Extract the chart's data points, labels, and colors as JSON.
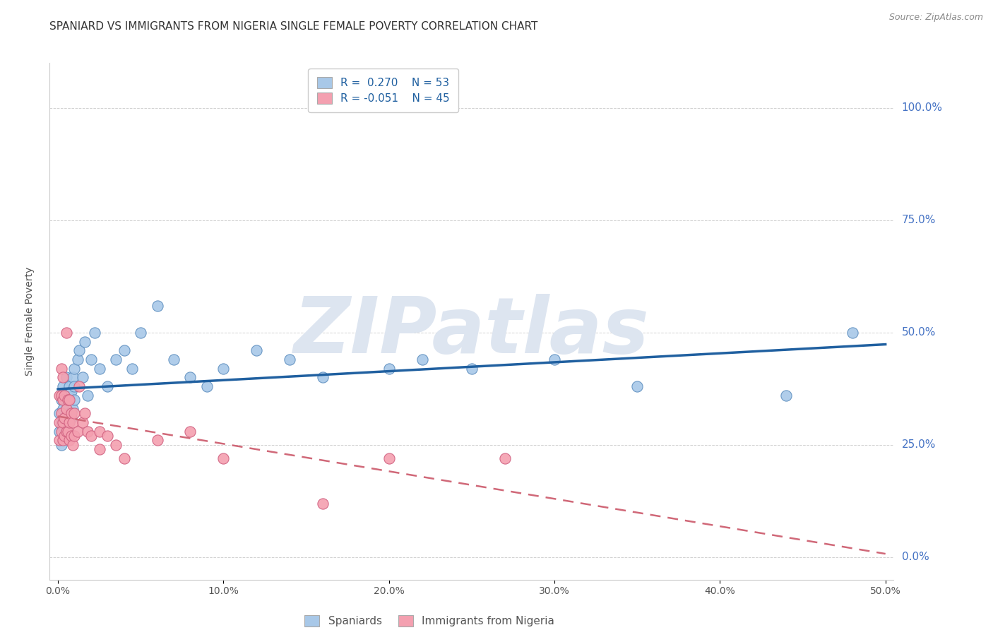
{
  "title": "SPANIARD VS IMMIGRANTS FROM NIGERIA SINGLE FEMALE POVERTY CORRELATION CHART",
  "source": "Source: ZipAtlas.com",
  "ylabel": "Single Female Poverty",
  "xlim": [
    -0.005,
    0.505
  ],
  "ylim": [
    -0.05,
    1.1
  ],
  "xticks": [
    0.0,
    0.1,
    0.2,
    0.3,
    0.4,
    0.5
  ],
  "xticklabels": [
    "0.0%",
    "10.0%",
    "20.0%",
    "30.0%",
    "40.0%",
    "50.0%"
  ],
  "yticks": [
    0.0,
    0.25,
    0.5,
    0.75,
    1.0
  ],
  "yticklabels": [
    "0.0%",
    "25.0%",
    "50.0%",
    "75.0%",
    "100.0%"
  ],
  "blue_R": 0.27,
  "blue_N": 53,
  "pink_R": -0.051,
  "pink_N": 45,
  "blue_color": "#a8c8e8",
  "pink_color": "#f4a0b0",
  "blue_edge_color": "#6090c0",
  "pink_edge_color": "#d06080",
  "blue_line_color": "#2060a0",
  "pink_line_color": "#d06878",
  "watermark": "ZIPatlas",
  "watermark_color": "#dde5f0",
  "legend_label_blue": "Spaniards",
  "legend_label_pink": "Immigrants from Nigeria",
  "blue_scatter_x": [
    0.001,
    0.001,
    0.002,
    0.002,
    0.002,
    0.003,
    0.003,
    0.003,
    0.004,
    0.004,
    0.004,
    0.005,
    0.005,
    0.005,
    0.006,
    0.006,
    0.007,
    0.007,
    0.008,
    0.008,
    0.009,
    0.009,
    0.01,
    0.01,
    0.01,
    0.012,
    0.013,
    0.015,
    0.016,
    0.018,
    0.02,
    0.022,
    0.025,
    0.03,
    0.035,
    0.04,
    0.045,
    0.05,
    0.06,
    0.07,
    0.08,
    0.09,
    0.1,
    0.12,
    0.14,
    0.16,
    0.2,
    0.22,
    0.25,
    0.3,
    0.35,
    0.44,
    0.48
  ],
  "blue_scatter_y": [
    0.28,
    0.32,
    0.3,
    0.35,
    0.25,
    0.29,
    0.33,
    0.38,
    0.27,
    0.31,
    0.36,
    0.28,
    0.33,
    0.4,
    0.3,
    0.36,
    0.32,
    0.38,
    0.31,
    0.37,
    0.33,
    0.4,
    0.35,
    0.42,
    0.38,
    0.44,
    0.46,
    0.4,
    0.48,
    0.36,
    0.44,
    0.5,
    0.42,
    0.38,
    0.44,
    0.46,
    0.42,
    0.5,
    0.56,
    0.44,
    0.4,
    0.38,
    0.42,
    0.46,
    0.44,
    0.4,
    0.42,
    0.44,
    0.42,
    0.44,
    0.38,
    0.36,
    0.5
  ],
  "pink_scatter_x": [
    0.001,
    0.001,
    0.001,
    0.002,
    0.002,
    0.002,
    0.002,
    0.003,
    0.003,
    0.003,
    0.003,
    0.004,
    0.004,
    0.004,
    0.005,
    0.005,
    0.005,
    0.006,
    0.006,
    0.007,
    0.007,
    0.007,
    0.008,
    0.008,
    0.009,
    0.009,
    0.01,
    0.01,
    0.012,
    0.013,
    0.015,
    0.016,
    0.018,
    0.02,
    0.025,
    0.025,
    0.03,
    0.035,
    0.04,
    0.06,
    0.08,
    0.1,
    0.16,
    0.2,
    0.27
  ],
  "pink_scatter_y": [
    0.26,
    0.3,
    0.36,
    0.28,
    0.32,
    0.36,
    0.42,
    0.26,
    0.3,
    0.35,
    0.4,
    0.27,
    0.31,
    0.36,
    0.28,
    0.33,
    0.5,
    0.28,
    0.35,
    0.26,
    0.3,
    0.35,
    0.27,
    0.32,
    0.25,
    0.3,
    0.27,
    0.32,
    0.28,
    0.38,
    0.3,
    0.32,
    0.28,
    0.27,
    0.28,
    0.24,
    0.27,
    0.25,
    0.22,
    0.26,
    0.28,
    0.22,
    0.12,
    0.22,
    0.22
  ],
  "background_color": "#ffffff",
  "grid_color": "#cccccc",
  "title_fontsize": 11,
  "legend_fontsize": 11,
  "tick_fontsize": 10
}
